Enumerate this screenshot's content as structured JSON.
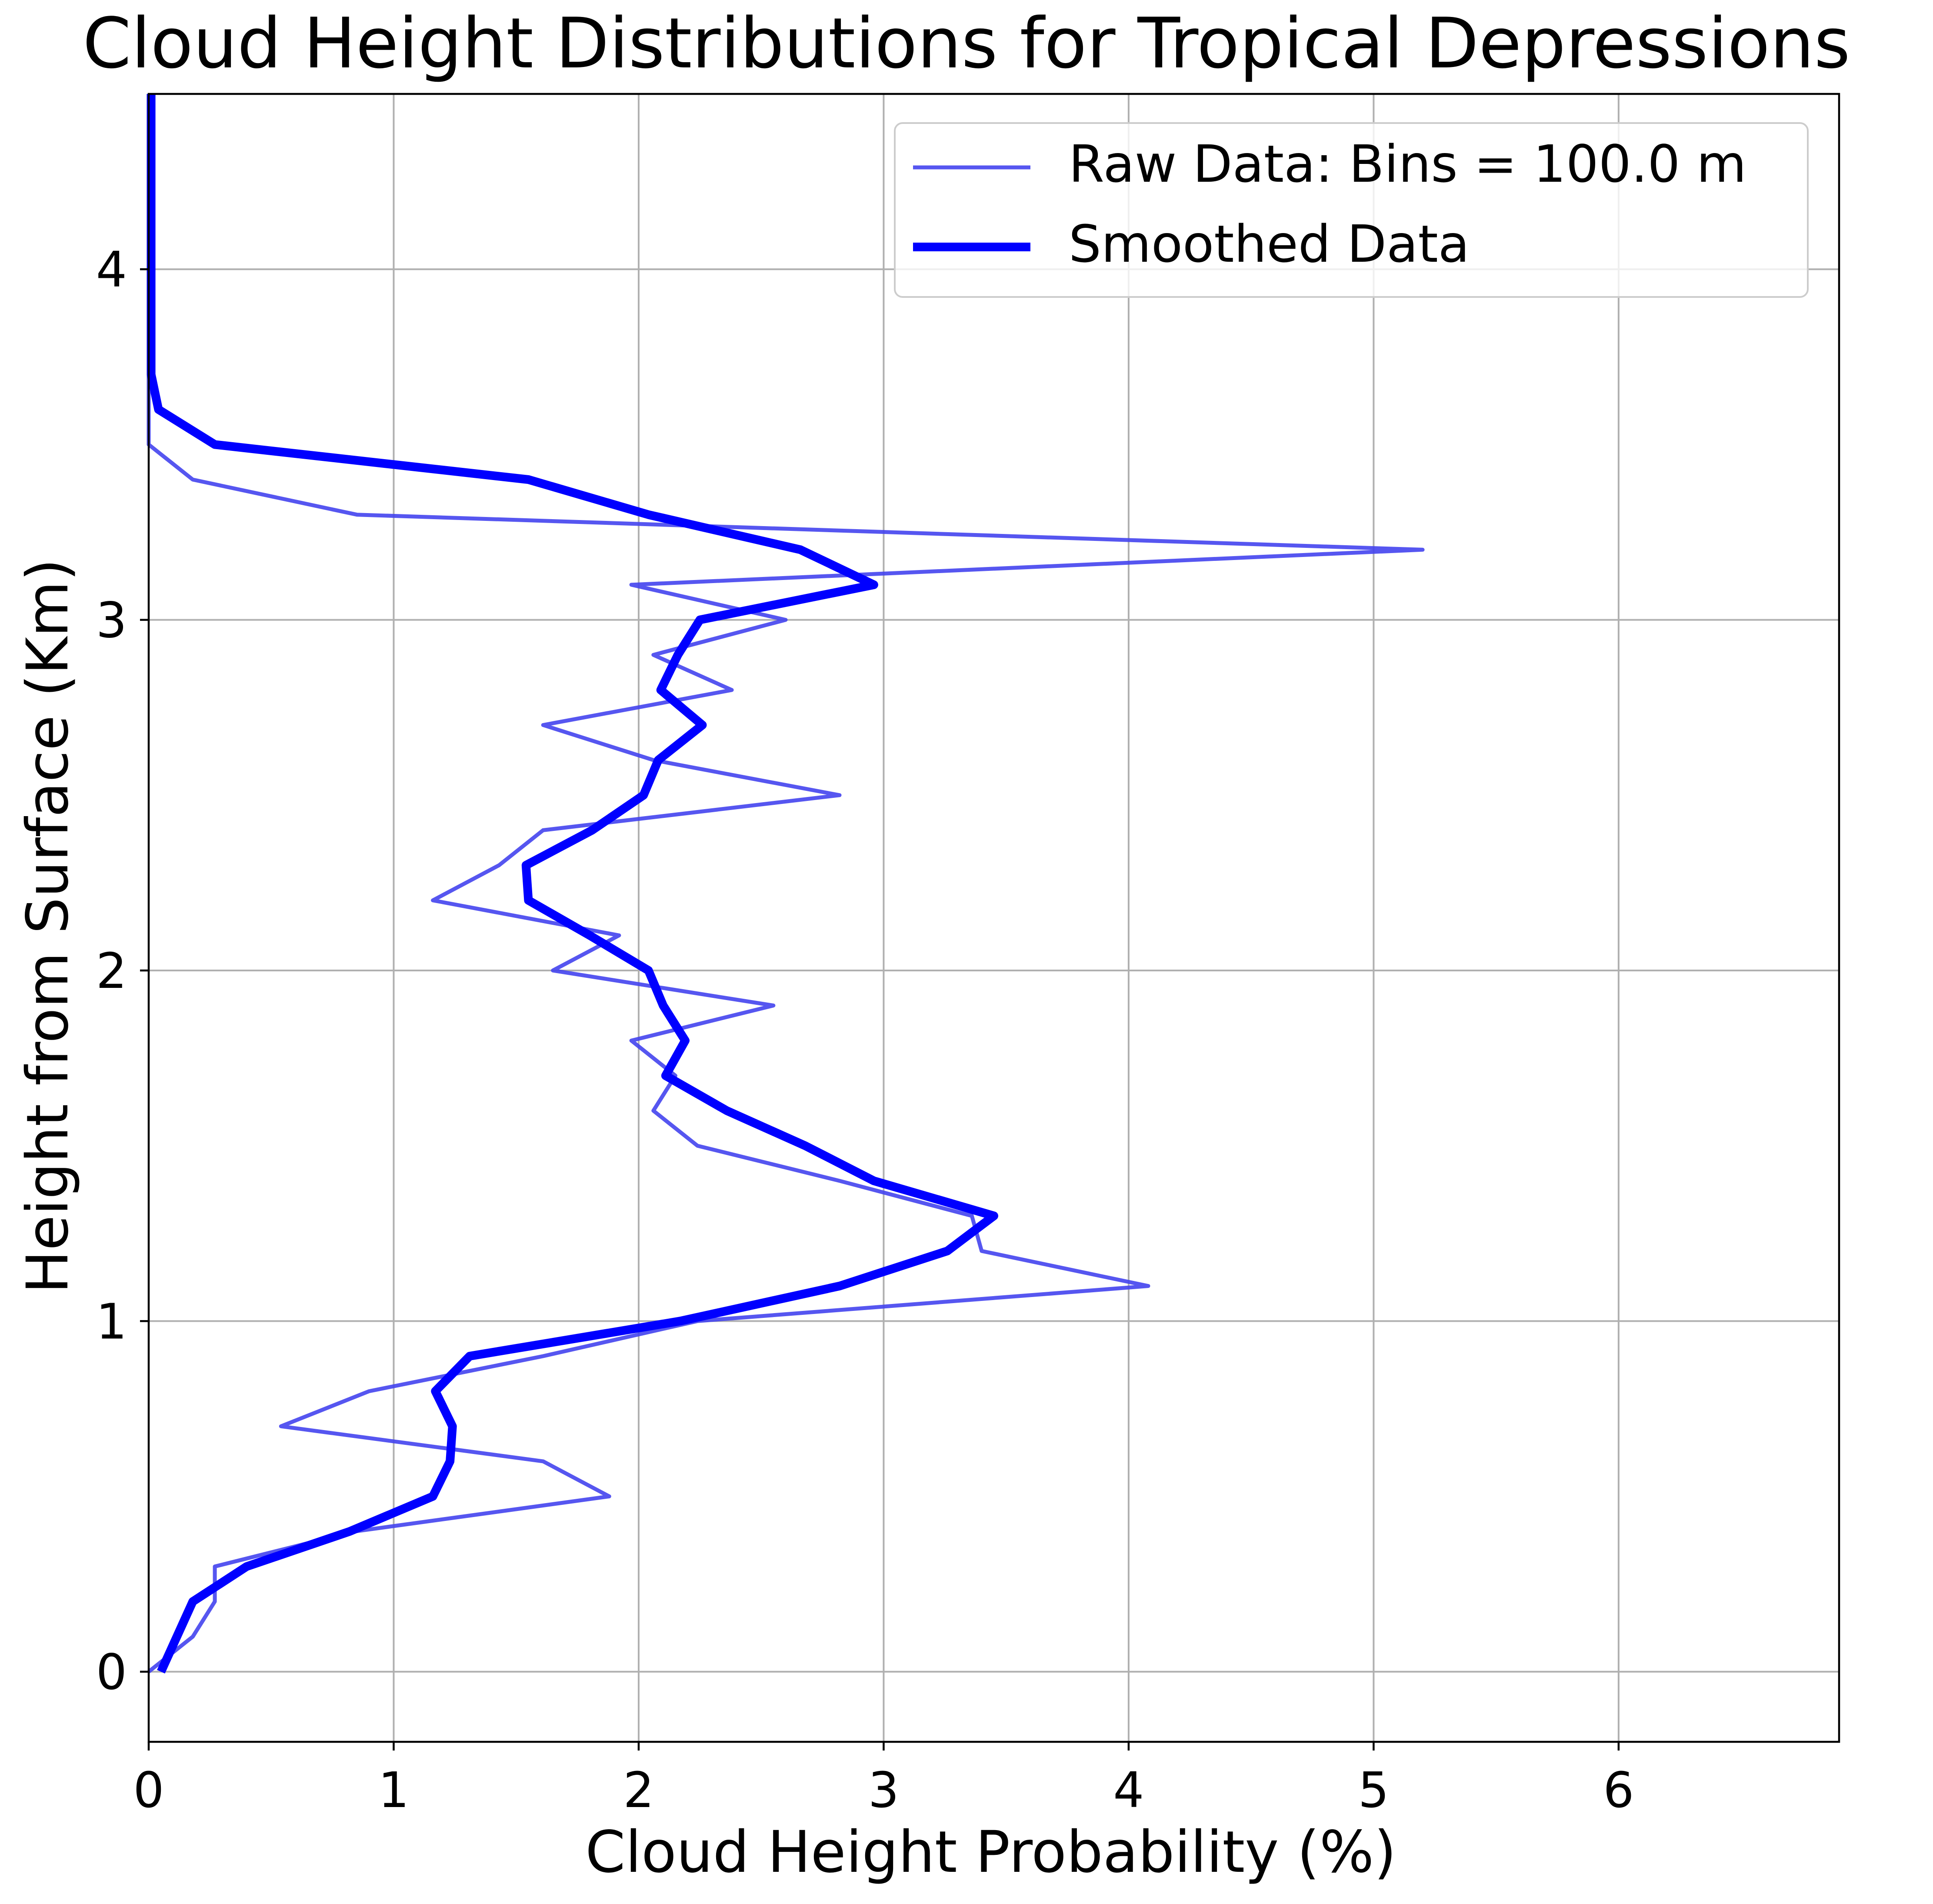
{
  "chart_data": {
    "type": "line",
    "orientation": "vertical-profile",
    "title": "Cloud Height Distributions for Tropical Depressions",
    "xlabel": "Cloud Height Probability (%)",
    "ylabel": "Height from Surface (Km)",
    "xlim": [
      0,
      6.9
    ],
    "ylim": [
      -0.2,
      4.5
    ],
    "xticks": [
      0,
      1,
      2,
      3,
      4,
      5,
      6
    ],
    "yticks": [
      0,
      1,
      2,
      3,
      4
    ],
    "grid": true,
    "legend_position": "top-right",
    "series": [
      {
        "name": "Raw Data: Bins = 100.0 m",
        "color": "#4444ee",
        "style": "thin",
        "points": [
          [
            0.0,
            0.0
          ],
          [
            0.18,
            0.1
          ],
          [
            0.27,
            0.2
          ],
          [
            0.27,
            0.3
          ],
          [
            0.84,
            0.4
          ],
          [
            1.88,
            0.5
          ],
          [
            1.61,
            0.6
          ],
          [
            0.54,
            0.7
          ],
          [
            0.9,
            0.8
          ],
          [
            1.61,
            0.9
          ],
          [
            2.24,
            1.0
          ],
          [
            4.08,
            1.1
          ],
          [
            3.4,
            1.2
          ],
          [
            3.36,
            1.3
          ],
          [
            2.82,
            1.4
          ],
          [
            2.24,
            1.5
          ],
          [
            2.06,
            1.6
          ],
          [
            2.15,
            1.7
          ],
          [
            1.97,
            1.8
          ],
          [
            2.55,
            1.9
          ],
          [
            1.65,
            2.0
          ],
          [
            1.92,
            2.1
          ],
          [
            1.16,
            2.2
          ],
          [
            1.43,
            2.3
          ],
          [
            1.61,
            2.4
          ],
          [
            2.82,
            2.5
          ],
          [
            2.06,
            2.6
          ],
          [
            1.61,
            2.7
          ],
          [
            2.38,
            2.8
          ],
          [
            2.06,
            2.9
          ],
          [
            2.6,
            3.0
          ],
          [
            1.97,
            3.1
          ],
          [
            5.2,
            3.2
          ],
          [
            0.85,
            3.3
          ],
          [
            0.18,
            3.4
          ],
          [
            0.0,
            3.5
          ],
          [
            0.0,
            3.6
          ],
          [
            0.0,
            3.7
          ],
          [
            0.0,
            3.8
          ],
          [
            0.0,
            3.9
          ],
          [
            0.0,
            4.0
          ],
          [
            0.0,
            4.1
          ],
          [
            0.0,
            4.2
          ],
          [
            0.0,
            4.3
          ],
          [
            0.0,
            4.4
          ],
          [
            0.0,
            4.5
          ]
        ]
      },
      {
        "name": "Smoothed Data",
        "color": "#0000ff",
        "style": "thick",
        "points": [
          [
            0.05,
            0.0
          ],
          [
            0.18,
            0.2
          ],
          [
            0.4,
            0.3
          ],
          [
            0.82,
            0.4
          ],
          [
            1.16,
            0.5
          ],
          [
            1.23,
            0.6
          ],
          [
            1.24,
            0.7
          ],
          [
            1.17,
            0.8
          ],
          [
            1.31,
            0.9
          ],
          [
            2.17,
            1.0
          ],
          [
            2.82,
            1.1
          ],
          [
            3.26,
            1.2
          ],
          [
            3.45,
            1.3
          ],
          [
            2.96,
            1.4
          ],
          [
            2.68,
            1.5
          ],
          [
            2.36,
            1.6
          ],
          [
            2.11,
            1.7
          ],
          [
            2.19,
            1.8
          ],
          [
            2.1,
            1.9
          ],
          [
            2.04,
            2.0
          ],
          [
            1.8,
            2.1
          ],
          [
            1.55,
            2.2
          ],
          [
            1.54,
            2.3
          ],
          [
            1.81,
            2.4
          ],
          [
            2.02,
            2.5
          ],
          [
            2.08,
            2.6
          ],
          [
            2.26,
            2.7
          ],
          [
            2.09,
            2.8
          ],
          [
            2.16,
            2.9
          ],
          [
            2.25,
            3.0
          ],
          [
            2.96,
            3.1
          ],
          [
            2.66,
            3.2
          ],
          [
            2.04,
            3.3
          ],
          [
            1.55,
            3.4
          ],
          [
            0.27,
            3.5
          ],
          [
            0.04,
            3.6
          ],
          [
            0.01,
            3.7
          ],
          [
            0.01,
            3.8
          ],
          [
            0.01,
            3.9
          ],
          [
            0.01,
            4.0
          ],
          [
            0.01,
            4.1
          ],
          [
            0.01,
            4.2
          ],
          [
            0.01,
            4.3
          ],
          [
            0.01,
            4.4
          ],
          [
            0.01,
            4.5
          ]
        ]
      }
    ]
  }
}
